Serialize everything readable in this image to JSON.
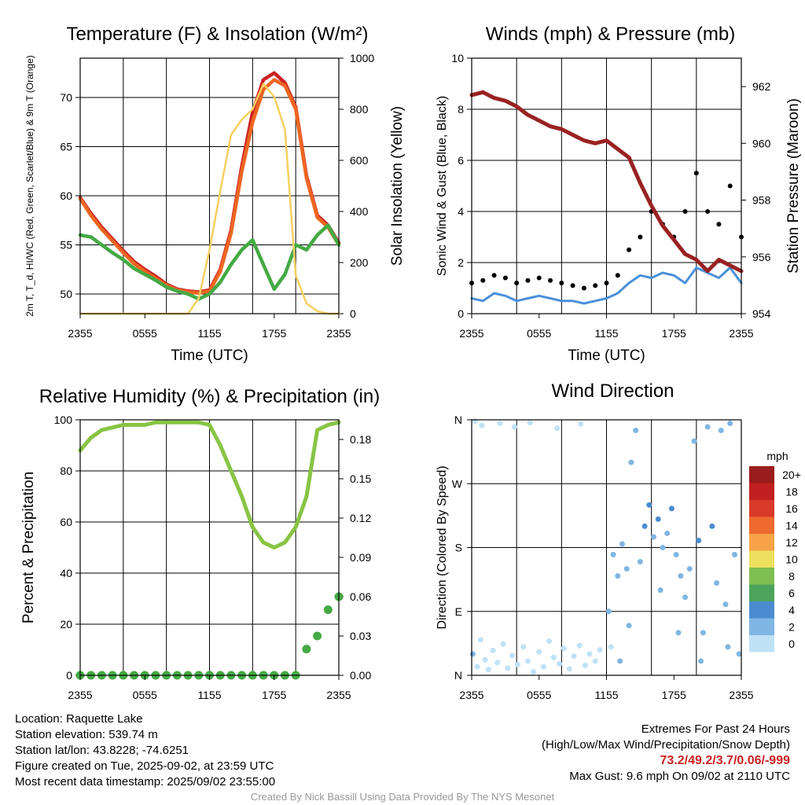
{
  "chart_data": [
    {
      "type": "line",
      "title": "Temperature (F) & Insolation (W/m²)",
      "ylabel": "2m T, T_d, HI/WC (Red, Green, Scarlet/Blue) & 9m T (Orange)",
      "y2label": "Solar Insolation (Yellow)",
      "xlabel": "Time (UTC)",
      "x_ticks": [
        "2355",
        "0555",
        "1155",
        "1755",
        "2355"
      ],
      "ylim": [
        48,
        74
      ],
      "y_ticks": [
        50,
        55,
        60,
        65,
        70
      ],
      "y2lim": [
        0,
        1000
      ],
      "y2_ticks": [
        0,
        200,
        400,
        600,
        800,
        1000
      ],
      "x_hours": [
        0,
        1,
        2,
        3,
        4,
        5,
        6,
        7,
        8,
        9,
        10,
        11,
        12,
        13,
        14,
        15,
        16,
        17,
        18,
        19,
        20,
        21,
        22,
        23,
        24
      ],
      "series": [
        {
          "name": "2m T",
          "color": "#cc2222",
          "axis": "left",
          "values": [
            59.8,
            58.2,
            56.8,
            55.6,
            54.4,
            53.3,
            52.5,
            51.8,
            51.0,
            50.5,
            50.3,
            50.2,
            50.4,
            52.5,
            56.5,
            63.0,
            68.5,
            71.8,
            72.5,
            71.5,
            69.0,
            62.0,
            58.0,
            57.0,
            55.2
          ]
        },
        {
          "name": "9m T",
          "color": "#ee6622",
          "axis": "left",
          "values": [
            59.7,
            58.0,
            56.6,
            55.4,
            54.2,
            53.1,
            52.3,
            51.6,
            50.9,
            50.4,
            50.2,
            50.1,
            50.3,
            52.3,
            56.2,
            62.5,
            67.5,
            70.8,
            71.8,
            71.2,
            68.8,
            61.8,
            57.8,
            56.8,
            55.0
          ]
        },
        {
          "name": "2m Td",
          "color": "#44aa44",
          "axis": "left",
          "values": [
            56.0,
            55.8,
            55.0,
            54.2,
            53.5,
            52.6,
            52.0,
            51.4,
            50.7,
            50.3,
            50.0,
            49.5,
            50.0,
            51.2,
            53.0,
            54.5,
            55.5,
            53.0,
            50.5,
            52.0,
            55.0,
            54.5,
            56.0,
            57.0,
            55.0
          ]
        },
        {
          "name": "Insolation",
          "color": "#f5d060",
          "axis": "right",
          "values": [
            0,
            0,
            0,
            0,
            0,
            0,
            0,
            0,
            0,
            0,
            0,
            60,
            250,
            480,
            700,
            760,
            800,
            900,
            850,
            720,
            150,
            40,
            10,
            0,
            0
          ]
        }
      ]
    },
    {
      "type": "line",
      "title": "Winds (mph) & Pressure (mb)",
      "ylabel": "Sonic Wind & Gust (Blue, Black)",
      "y2label": "Station Pressure (Maroon)",
      "xlabel": "Time (UTC)",
      "x_ticks": [
        "2355",
        "0555",
        "1155",
        "1755",
        "2355"
      ],
      "ylim": [
        0,
        10
      ],
      "y_ticks": [
        0,
        2,
        4,
        6,
        8,
        10
      ],
      "y2lim": [
        954,
        963
      ],
      "y2_ticks": [
        954,
        956,
        958,
        960,
        962
      ],
      "x_hours": [
        0,
        1,
        2,
        3,
        4,
        5,
        6,
        7,
        8,
        9,
        10,
        11,
        12,
        13,
        14,
        15,
        16,
        17,
        18,
        19,
        20,
        21,
        22,
        23,
        24
      ],
      "series": [
        {
          "name": "Sonic Wind",
          "color": "#4a90d9",
          "axis": "left",
          "values": [
            0.6,
            0.5,
            0.8,
            0.7,
            0.5,
            0.6,
            0.7,
            0.6,
            0.5,
            0.5,
            0.4,
            0.5,
            0.6,
            0.8,
            1.2,
            1.5,
            1.4,
            1.6,
            1.5,
            1.2,
            1.8,
            1.6,
            1.4,
            1.8,
            1.2
          ]
        },
        {
          "name": "Gust",
          "color": "#000000",
          "axis": "left",
          "values": [
            1.2,
            1.3,
            1.5,
            1.4,
            1.2,
            1.3,
            1.4,
            1.3,
            1.2,
            1.1,
            1.0,
            1.1,
            1.2,
            1.5,
            2.5,
            3.0,
            4.0,
            3.5,
            3.0,
            4.0,
            5.5,
            4.0,
            3.5,
            5.0,
            3.0
          ]
        },
        {
          "name": "Station Pressure",
          "color": "#992222",
          "axis": "right",
          "values": [
            961.7,
            961.8,
            961.6,
            961.5,
            961.3,
            961.0,
            960.8,
            960.6,
            960.5,
            960.3,
            960.1,
            960.0,
            960.1,
            959.8,
            959.5,
            958.6,
            957.8,
            957.1,
            956.6,
            956.1,
            955.9,
            955.5,
            955.9,
            955.7,
            955.5
          ]
        }
      ]
    },
    {
      "type": "line",
      "title": "Relative Humidity (%) & Precipitation (in)",
      "ylabel": "Percent & Precipitation",
      "xlabel": "",
      "x_ticks": [
        "2355",
        "0555",
        "1155",
        "1755",
        "2355"
      ],
      "ylim": [
        0,
        100
      ],
      "y_ticks": [
        0,
        20,
        40,
        60,
        80,
        100
      ],
      "y2lim": [
        0,
        0.195
      ],
      "y2_ticks": [
        "0.00",
        "0.03",
        "0.06",
        "0.09",
        "0.12",
        "0.15",
        "0.18"
      ],
      "x_hours": [
        0,
        1,
        2,
        3,
        4,
        5,
        6,
        7,
        8,
        9,
        10,
        11,
        12,
        13,
        14,
        15,
        16,
        17,
        18,
        19,
        20,
        21,
        22,
        23,
        24
      ],
      "series": [
        {
          "name": "Relative Humidity",
          "color": "#88c444",
          "axis": "left",
          "values": [
            88,
            93,
            96,
            97,
            98,
            98,
            98,
            99,
            99,
            99,
            99,
            99,
            98,
            90,
            80,
            70,
            58,
            52,
            50,
            52,
            58,
            70,
            96,
            98,
            99
          ]
        },
        {
          "name": "Precipitation",
          "color": "#44aa44",
          "axis": "right",
          "values": [
            0,
            0,
            0,
            0,
            0,
            0,
            0,
            0,
            0,
            0,
            0,
            0,
            0,
            0,
            0,
            0,
            0,
            0,
            0,
            0,
            0,
            0.02,
            0.03,
            0.05,
            0.06
          ]
        }
      ]
    },
    {
      "type": "scatter",
      "title": "Wind Direction",
      "ylabel": "Direction (Colored By Speed)",
      "xlabel": "",
      "x_ticks": [
        "2355",
        "0555",
        "1155",
        "1755",
        "2355"
      ],
      "y_ticks": [
        "N",
        "E",
        "S",
        "W",
        "N"
      ],
      "ylim": [
        0,
        360
      ],
      "legend": {
        "title": "mph",
        "labels": [
          "20+",
          "18",
          "16",
          "14",
          "12",
          "10",
          "8",
          "6",
          "4",
          "2",
          "0"
        ],
        "colors": [
          "#9b1c1c",
          "#c0201f",
          "#d93a2a",
          "#ef6a2e",
          "#f6a247",
          "#ece05c",
          "#7fbf52",
          "#4ea45b",
          "#4a8ccf",
          "#7fb6e3",
          "#bfe2f7"
        ]
      },
      "points": [
        [
          0.1,
          30,
          1
        ],
        [
          0.5,
          12,
          0.5
        ],
        [
          0.8,
          50,
          0.6
        ],
        [
          1.2,
          22,
          0.7
        ],
        [
          1.5,
          8,
          0.4
        ],
        [
          1.9,
          35,
          0.6
        ],
        [
          2.3,
          18,
          0.5
        ],
        [
          2.8,
          44,
          0.8
        ],
        [
          3.2,
          10,
          0.5
        ],
        [
          3.6,
          28,
          0.7
        ],
        [
          4.1,
          15,
          0.4
        ],
        [
          4.6,
          40,
          0.9
        ],
        [
          5.0,
          20,
          0.6
        ],
        [
          5.5,
          5,
          0.5
        ],
        [
          6.0,
          33,
          0.7
        ],
        [
          6.4,
          12,
          0.6
        ],
        [
          6.9,
          48,
          0.8
        ],
        [
          7.3,
          25,
          0.5
        ],
        [
          7.8,
          16,
          0.6
        ],
        [
          8.2,
          38,
          0.7
        ],
        [
          8.7,
          9,
          0.4
        ],
        [
          9.1,
          27,
          0.6
        ],
        [
          9.6,
          42,
          0.8
        ],
        [
          10.1,
          14,
          0.5
        ],
        [
          10.5,
          30,
          0.6
        ],
        [
          11.0,
          20,
          0.7
        ],
        [
          11.4,
          36,
          0.5
        ],
        [
          0.3,
          358,
          0.8
        ],
        [
          0.9,
          352,
          0.6
        ],
        [
          2.5,
          355,
          0.7
        ],
        [
          3.8,
          350,
          0.6
        ],
        [
          5.2,
          356,
          0.8
        ],
        [
          7.6,
          348,
          0.5
        ],
        [
          9.7,
          354,
          0.7
        ],
        [
          12.2,
          90,
          1.4
        ],
        [
          12.6,
          170,
          1.8
        ],
        [
          13.0,
          140,
          1.5
        ],
        [
          13.4,
          185,
          2.2
        ],
        [
          13.8,
          150,
          1.7
        ],
        [
          14.2,
          300,
          2.6
        ],
        [
          14.6,
          345,
          2.9
        ],
        [
          15.0,
          160,
          2.1
        ],
        [
          15.4,
          210,
          3.0
        ],
        [
          15.8,
          240,
          3.3
        ],
        [
          16.2,
          195,
          2.8
        ],
        [
          16.6,
          220,
          3.1
        ],
        [
          17.0,
          180,
          2.5
        ],
        [
          17.4,
          200,
          2.9
        ],
        [
          17.8,
          235,
          3.4
        ],
        [
          18.2,
          170,
          2.4
        ],
        [
          18.6,
          140,
          2.2
        ],
        [
          19.0,
          110,
          2.6
        ],
        [
          19.4,
          150,
          2.3
        ],
        [
          19.8,
          330,
          2.0
        ],
        [
          20.2,
          190,
          3.5
        ],
        [
          20.6,
          60,
          2.0
        ],
        [
          21.0,
          350,
          2.4
        ],
        [
          21.4,
          210,
          3.2
        ],
        [
          21.8,
          130,
          2.1
        ],
        [
          22.2,
          345,
          2.7
        ],
        [
          22.6,
          100,
          1.9
        ],
        [
          23.0,
          355,
          2.5
        ],
        [
          23.4,
          170,
          2.2
        ],
        [
          23.8,
          30,
          1.6
        ],
        [
          12.4,
          40,
          0.9
        ],
        [
          13.2,
          20,
          1.0
        ],
        [
          14.0,
          70,
          1.2
        ],
        [
          16.8,
          120,
          1.1
        ],
        [
          18.4,
          60,
          1.3
        ],
        [
          20.4,
          20,
          1.0
        ],
        [
          22.8,
          40,
          1.4
        ]
      ]
    }
  ],
  "footer": {
    "location": "Location: Raquette Lake",
    "elevation": "Station elevation: 539.74 m",
    "latlon": "Station lat/lon: 43.8228; -74.6251",
    "created": "Figure created on Tue, 2025-09-02, at 23:59 UTC",
    "recent": "Most recent data timestamp: 2025/09/02 23:55:00",
    "extremes_title": "Extremes For Past 24 Hours",
    "extremes_subtitle": "(High/Low/Max Wind/Precipitation/Snow Depth)",
    "extremes_values": "73.2/49.2/3.7/0.06/-999",
    "max_gust": "Max Gust: 9.6 mph On 09/02 at 2110 UTC",
    "credit": "Created By Nick Bassill Using Data Provided By The NYS Mesonet"
  }
}
